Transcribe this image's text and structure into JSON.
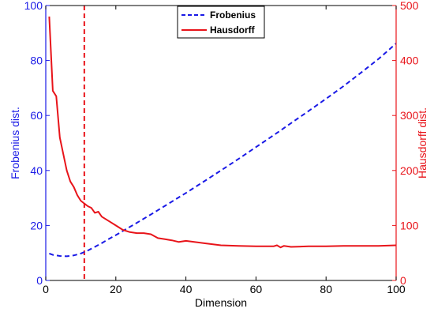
{
  "chart_data": {
    "type": "line",
    "xlabel": "Dimension",
    "ylabel_left": "Frobenius dist.",
    "ylabel_right": "Hausdorff dist.",
    "xlim": [
      0,
      100
    ],
    "ylim_left": [
      0,
      100
    ],
    "ylim_right": [
      0,
      500
    ],
    "x_ticks": [
      0,
      20,
      40,
      60,
      80,
      100
    ],
    "y_ticks_left": [
      0,
      20,
      40,
      60,
      80,
      100
    ],
    "y_ticks_right": [
      0,
      100,
      200,
      300,
      400,
      500
    ],
    "grid": false,
    "legend_position": "top-center",
    "vertical_line": {
      "x": 11,
      "color": "#e8141a",
      "style": "dashed"
    },
    "colors": {
      "left_axis": "#1a1ae6",
      "right_axis": "#e8141a",
      "plot_frame": "#000000"
    },
    "series": [
      {
        "name": "Frobenius",
        "axis": "left",
        "style": "dashed",
        "color": "#1a1ae6",
        "x": [
          1,
          2,
          4,
          6,
          8,
          10,
          12,
          14,
          16,
          18,
          20,
          22,
          25,
          30,
          35,
          40,
          45,
          50,
          55,
          60,
          65,
          70,
          75,
          80,
          85,
          90,
          95,
          100
        ],
        "y": [
          9.8,
          9.3,
          8.9,
          8.8,
          9.1,
          9.8,
          10.9,
          12.2,
          13.6,
          15.1,
          16.5,
          18.0,
          20.2,
          24.0,
          27.9,
          31.8,
          35.9,
          40.0,
          44.2,
          48.5,
          52.8,
          57.2,
          61.6,
          66.1,
          70.7,
          75.6,
          80.6,
          86.2
        ]
      },
      {
        "name": "Hausdorff",
        "axis": "right",
        "style": "solid",
        "color": "#e8141a",
        "x": [
          1,
          2,
          3,
          4,
          5,
          6,
          7,
          8,
          9,
          10,
          11,
          12,
          13,
          14,
          15,
          16,
          18,
          20,
          22,
          24,
          26,
          28,
          30,
          32,
          34,
          36,
          38,
          40,
          45,
          50,
          55,
          60,
          65,
          66,
          67,
          68,
          70,
          75,
          80,
          85,
          90,
          95,
          100
        ],
        "y": [
          480,
          345,
          335,
          260,
          230,
          200,
          180,
          170,
          155,
          145,
          140,
          135,
          132,
          123,
          125,
          116,
          108,
          100,
          92,
          88,
          86,
          86,
          84,
          77,
          75,
          73,
          70,
          72,
          68,
          64,
          63,
          62,
          62,
          64,
          60,
          63,
          61,
          62,
          62,
          63,
          63,
          63,
          64
        ]
      }
    ]
  }
}
